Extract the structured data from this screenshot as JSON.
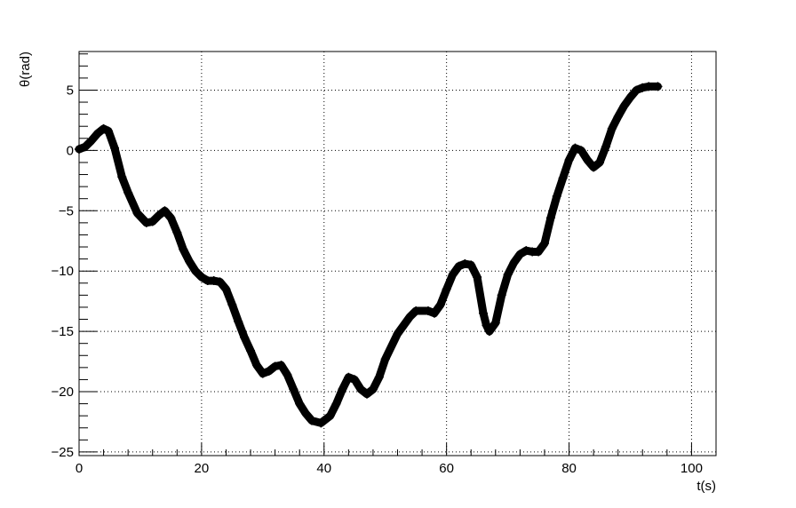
{
  "chart_data": {
    "type": "scatter",
    "title": "",
    "xlabel": "t(s)",
    "ylabel": "θ(rad)",
    "xlim": [
      0,
      104
    ],
    "ylim": [
      -25.3,
      8.2
    ],
    "x_ticks": [
      0,
      20,
      40,
      60,
      80,
      100
    ],
    "y_ticks": [
      -25,
      -20,
      -15,
      -10,
      -5,
      0,
      5
    ],
    "x_tick_labels": [
      "0",
      "20",
      "40",
      "60",
      "80",
      "100"
    ],
    "y_tick_labels": [
      "−25",
      "−20",
      "−15",
      "−10",
      "−5",
      "0",
      "5"
    ],
    "grid": true,
    "legend": "none",
    "marker": "+",
    "marker_color": "#000000",
    "series": [
      {
        "x": [
          0,
          1,
          2,
          3,
          4,
          4.8,
          5.8,
          7,
          8,
          9.5,
          11,
          12,
          13,
          14,
          15,
          16,
          17,
          18,
          19,
          20,
          21,
          22,
          23,
          24,
          25,
          26,
          27,
          28,
          29,
          30,
          31,
          32,
          33,
          34,
          35,
          36,
          37,
          38,
          39.5,
          41,
          42,
          43,
          44,
          45,
          46,
          47,
          48,
          49,
          50,
          52,
          54,
          55,
          57,
          58,
          59,
          60,
          61,
          62,
          63,
          64,
          65,
          66,
          66.5,
          67,
          68,
          69,
          70,
          71,
          72,
          73,
          74,
          75,
          76,
          77,
          78,
          79,
          80,
          81,
          82,
          83,
          84,
          85,
          86,
          87,
          88,
          89,
          90,
          91,
          92,
          93,
          94.5
        ],
        "y": [
          0.1,
          0.3,
          0.8,
          1.4,
          1.8,
          1.6,
          0.2,
          -2.2,
          -3.5,
          -5.2,
          -6.0,
          -5.9,
          -5.4,
          -5.0,
          -5.6,
          -6.8,
          -8.2,
          -9.2,
          -10.0,
          -10.5,
          -10.8,
          -10.8,
          -10.9,
          -11.5,
          -12.8,
          -14.2,
          -15.5,
          -16.6,
          -17.8,
          -18.5,
          -18.3,
          -17.9,
          -17.8,
          -18.6,
          -19.8,
          -21.0,
          -21.8,
          -22.4,
          -22.6,
          -22.0,
          -21.0,
          -19.8,
          -18.8,
          -19.0,
          -19.8,
          -20.2,
          -19.8,
          -18.8,
          -17.3,
          -15.2,
          -13.8,
          -13.3,
          -13.3,
          -13.5,
          -12.8,
          -11.5,
          -10.3,
          -9.6,
          -9.4,
          -9.5,
          -10.5,
          -13.5,
          -14.5,
          -15.0,
          -14.3,
          -12.0,
          -10.3,
          -9.3,
          -8.6,
          -8.3,
          -8.4,
          -8.4,
          -7.7,
          -5.6,
          -3.8,
          -2.3,
          -0.8,
          0.2,
          0.0,
          -0.8,
          -1.4,
          -1.0,
          0.3,
          1.8,
          2.8,
          3.7,
          4.4,
          5.0,
          5.2,
          5.3,
          5.3
        ]
      }
    ]
  }
}
